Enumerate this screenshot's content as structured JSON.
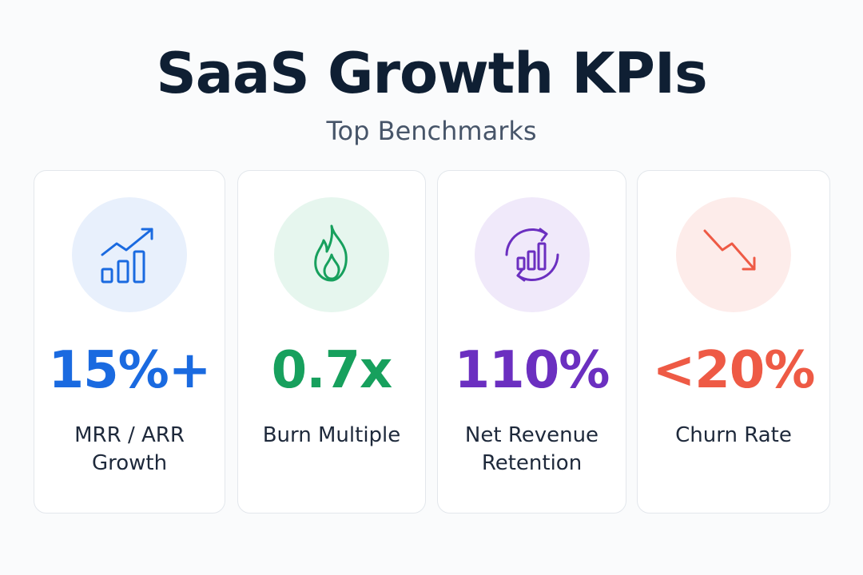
{
  "header": {
    "title": "SaaS Growth KPIs",
    "subtitle": "Top Benchmarks"
  },
  "cards": [
    {
      "value": "15%+",
      "label_line1": "MRR / ARR",
      "label_line2": "Growth",
      "icon": "growth-chart-icon",
      "accent": "#1a6ae0",
      "icon_bg": "#e8f0fc"
    },
    {
      "value": "0.7x",
      "label_line1": "Burn Multiple",
      "label_line2": "",
      "icon": "flame-icon",
      "accent": "#17a05d",
      "icon_bg": "#e6f6ee"
    },
    {
      "value": "110%",
      "label_line1": "Net Revenue",
      "label_line2": "Retention",
      "icon": "retention-cycle-icon",
      "accent": "#6b2fc0",
      "icon_bg": "#f0e9fa"
    },
    {
      "value": "<20%",
      "label_line1": "Churn Rate",
      "label_line2": "",
      "icon": "trend-down-icon",
      "accent": "#ee5a45",
      "icon_bg": "#fdecea"
    }
  ]
}
